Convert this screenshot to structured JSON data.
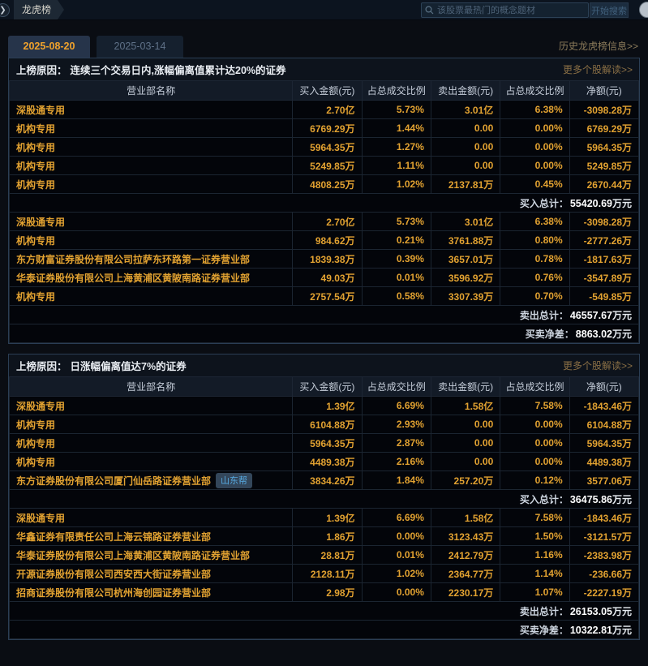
{
  "colors": {
    "accent_gold": "#e2a231",
    "tab_active_text": "#f0a22c",
    "badge_text": "#57aae2",
    "link_tan": "#8d7c5b",
    "panel_border": "#2b3e54"
  },
  "header": {
    "title": "龙虎榜",
    "crumb_chevron": "❯",
    "search_placeholder": "该股票最热门的概念题材",
    "search_button": "开始搜索"
  },
  "tabs": [
    {
      "label": "2025-08-20",
      "active": true
    },
    {
      "label": "2025-03-14",
      "active": false
    }
  ],
  "history_link": "历史龙虎榜信息>>",
  "strings": {
    "reason_label": "上榜原因：",
    "more_link": "更多个股解读>>",
    "buy_total_label": "买入总计：",
    "sell_total_label": "卖出总计：",
    "net_label": "买卖净差：",
    "unit": "万元"
  },
  "columns": [
    "营业部名称",
    "买入金额(元)",
    "占总成交比例",
    "卖出金额(元)",
    "占总成交比例",
    "净额(元)"
  ],
  "sections": [
    {
      "reason": "连续三个交易日内,涨幅偏离值累计达20%的证券",
      "buy_rows": [
        {
          "name": "深股通专用",
          "buy": "2.70亿",
          "buy_pct": "5.73%",
          "sell": "3.01亿",
          "sell_pct": "6.38%",
          "net": "-3098.28万"
        },
        {
          "name": "机构专用",
          "buy": "6769.29万",
          "buy_pct": "1.44%",
          "sell": "0.00",
          "sell_pct": "0.00%",
          "net": "6769.29万"
        },
        {
          "name": "机构专用",
          "buy": "5964.35万",
          "buy_pct": "1.27%",
          "sell": "0.00",
          "sell_pct": "0.00%",
          "net": "5964.35万"
        },
        {
          "name": "机构专用",
          "buy": "5249.85万",
          "buy_pct": "1.11%",
          "sell": "0.00",
          "sell_pct": "0.00%",
          "net": "5249.85万"
        },
        {
          "name": "机构专用",
          "buy": "4808.25万",
          "buy_pct": "1.02%",
          "sell": "2137.81万",
          "sell_pct": "0.45%",
          "net": "2670.44万"
        }
      ],
      "buy_total": "55420.69",
      "sell_rows": [
        {
          "name": "深股通专用",
          "buy": "2.70亿",
          "buy_pct": "5.73%",
          "sell": "3.01亿",
          "sell_pct": "6.38%",
          "net": "-3098.28万"
        },
        {
          "name": "机构专用",
          "buy": "984.62万",
          "buy_pct": "0.21%",
          "sell": "3761.88万",
          "sell_pct": "0.80%",
          "net": "-2777.26万"
        },
        {
          "name": "东方财富证券股份有限公司拉萨东环路第一证券营业部",
          "buy": "1839.38万",
          "buy_pct": "0.39%",
          "sell": "3657.01万",
          "sell_pct": "0.78%",
          "net": "-1817.63万"
        },
        {
          "name": "华泰证券股份有限公司上海黄浦区黄陂南路证券营业部",
          "buy": "49.03万",
          "buy_pct": "0.01%",
          "sell": "3596.92万",
          "sell_pct": "0.76%",
          "net": "-3547.89万"
        },
        {
          "name": "机构专用",
          "buy": "2757.54万",
          "buy_pct": "0.58%",
          "sell": "3307.39万",
          "sell_pct": "0.70%",
          "net": "-549.85万"
        }
      ],
      "sell_total": "46557.67",
      "net_total": "8863.02"
    },
    {
      "reason": "日涨幅偏离值达7%的证券",
      "buy_rows": [
        {
          "name": "深股通专用",
          "buy": "1.39亿",
          "buy_pct": "6.69%",
          "sell": "1.58亿",
          "sell_pct": "7.58%",
          "net": "-1843.46万"
        },
        {
          "name": "机构专用",
          "buy": "6104.88万",
          "buy_pct": "2.93%",
          "sell": "0.00",
          "sell_pct": "0.00%",
          "net": "6104.88万"
        },
        {
          "name": "机构专用",
          "buy": "5964.35万",
          "buy_pct": "2.87%",
          "sell": "0.00",
          "sell_pct": "0.00%",
          "net": "5964.35万"
        },
        {
          "name": "机构专用",
          "buy": "4489.38万",
          "buy_pct": "2.16%",
          "sell": "0.00",
          "sell_pct": "0.00%",
          "net": "4489.38万"
        },
        {
          "name": "东方证券股份有限公司厦门仙岳路证券营业部",
          "badge": "山东帮",
          "buy": "3834.26万",
          "buy_pct": "1.84%",
          "sell": "257.20万",
          "sell_pct": "0.12%",
          "net": "3577.06万"
        }
      ],
      "buy_total": "36475.86",
      "sell_rows": [
        {
          "name": "深股通专用",
          "buy": "1.39亿",
          "buy_pct": "6.69%",
          "sell": "1.58亿",
          "sell_pct": "7.58%",
          "net": "-1843.46万"
        },
        {
          "name": "华鑫证券有限责任公司上海云锦路证券营业部",
          "buy": "1.86万",
          "buy_pct": "0.00%",
          "sell": "3123.43万",
          "sell_pct": "1.50%",
          "net": "-3121.57万"
        },
        {
          "name": "华泰证券股份有限公司上海黄浦区黄陂南路证券营业部",
          "buy": "28.81万",
          "buy_pct": "0.01%",
          "sell": "2412.79万",
          "sell_pct": "1.16%",
          "net": "-2383.98万"
        },
        {
          "name": "开源证券股份有限公司西安西大街证券营业部",
          "buy": "2128.11万",
          "buy_pct": "1.02%",
          "sell": "2364.77万",
          "sell_pct": "1.14%",
          "net": "-236.66万"
        },
        {
          "name": "招商证券股份有限公司杭州海创园证券营业部",
          "buy": "2.98万",
          "buy_pct": "0.00%",
          "sell": "2230.17万",
          "sell_pct": "1.07%",
          "net": "-2227.19万"
        }
      ],
      "sell_total": "26153.05",
      "net_total": "10322.81"
    }
  ]
}
